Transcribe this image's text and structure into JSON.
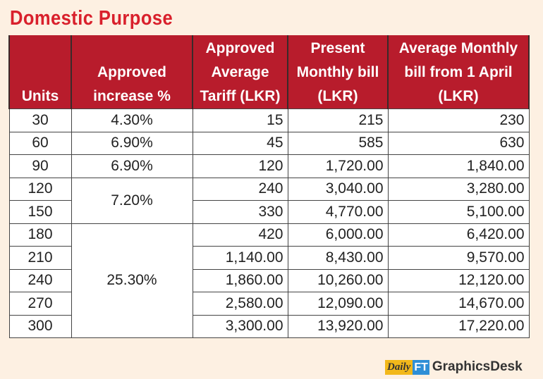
{
  "title": "Domestic Purpose",
  "headers": [
    "Units",
    "Approved increase %",
    "Approved Average Tariff (LKR)",
    "Present Monthly bill (LKR)",
    "Average Monthly bill from 1 April (LKR)"
  ],
  "rows": [
    {
      "units": "30",
      "increase": "4.30%",
      "tariff": "15",
      "present": "215",
      "new": "230"
    },
    {
      "units": "60",
      "increase": "6.90%",
      "tariff": "45",
      "present": "585",
      "new": "630"
    },
    {
      "units": "90",
      "increase": "6.90%",
      "tariff": "120",
      "present": "1,720.00",
      "new": "1,840.00"
    },
    {
      "units": "120",
      "increase": "7.20%",
      "tariff": "240",
      "present": "3,040.00",
      "new": "3,280.00"
    },
    {
      "units": "150",
      "tariff": "330",
      "present": "4,770.00",
      "new": "5,100.00"
    },
    {
      "units": "180",
      "increase": "25.30%",
      "tariff": "420",
      "present": "6,000.00",
      "new": "6,420.00"
    },
    {
      "units": "210",
      "tariff": "1,140.00",
      "present": "8,430.00",
      "new": "9,570.00"
    },
    {
      "units": "240",
      "tariff": "1,860.00",
      "present": "10,260.00",
      "new": "12,120.00"
    },
    {
      "units": "270",
      "tariff": "2,580.00",
      "present": "12,090.00",
      "new": "14,670.00"
    },
    {
      "units": "300",
      "tariff": "3,300.00",
      "present": "13,920.00",
      "new": "17,220.00"
    }
  ],
  "logo": {
    "daily": "Daily",
    "ft": "FT",
    "desk": "GraphicsDesk"
  }
}
